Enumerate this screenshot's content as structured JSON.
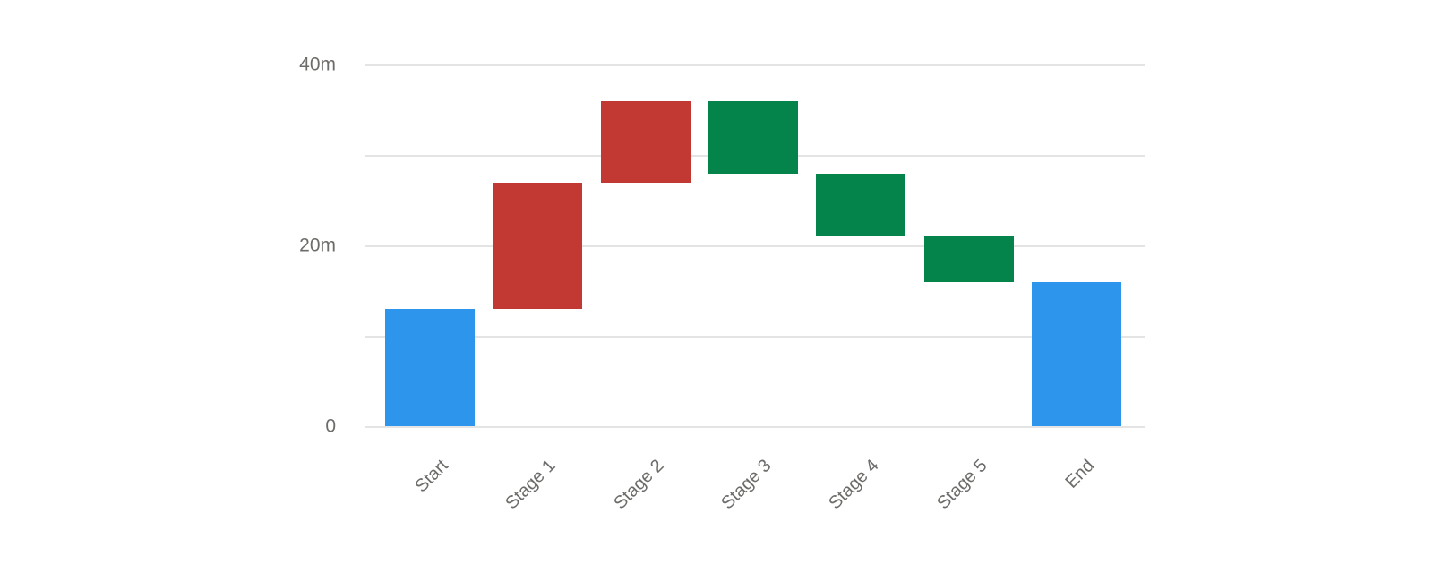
{
  "chart_data": {
    "type": "bar",
    "subtype": "waterfall",
    "title": "",
    "xlabel": "",
    "ylabel": "",
    "categories": [
      "Start",
      "Stage 1",
      "Stage 2",
      "Stage 3",
      "Stage 4",
      "Stage 5",
      "End"
    ],
    "bars": [
      {
        "label": "Start",
        "kind": "total",
        "start": 0,
        "end": 13,
        "delta": 13
      },
      {
        "label": "Stage 1",
        "kind": "increase",
        "start": 13,
        "end": 27,
        "delta": 14
      },
      {
        "label": "Stage 2",
        "kind": "increase",
        "start": 27,
        "end": 36,
        "delta": 9
      },
      {
        "label": "Stage 3",
        "kind": "decrease",
        "start": 36,
        "end": 28,
        "delta": -8
      },
      {
        "label": "Stage 4",
        "kind": "decrease",
        "start": 28,
        "end": 21,
        "delta": -7
      },
      {
        "label": "Stage 5",
        "kind": "decrease",
        "start": 21,
        "end": 16,
        "delta": -5
      },
      {
        "label": "End",
        "kind": "total",
        "start": 0,
        "end": 16,
        "delta": 16
      }
    ],
    "y_axis": {
      "min": 0,
      "max": 40,
      "unit": "m",
      "gridline_values": [
        0,
        10,
        20,
        30,
        40
      ],
      "tick_labels": [
        {
          "value": 0,
          "label": "0"
        },
        {
          "value": 20,
          "label": "20m"
        },
        {
          "value": 40,
          "label": "40m"
        }
      ]
    },
    "grid": "horizontal",
    "legend": "none",
    "colors": {
      "total": "#2E95EC",
      "increase": "#C23934",
      "decrease": "#04844B",
      "gridline": "#E4E4E4",
      "axis_text": "#6E6C69"
    }
  }
}
